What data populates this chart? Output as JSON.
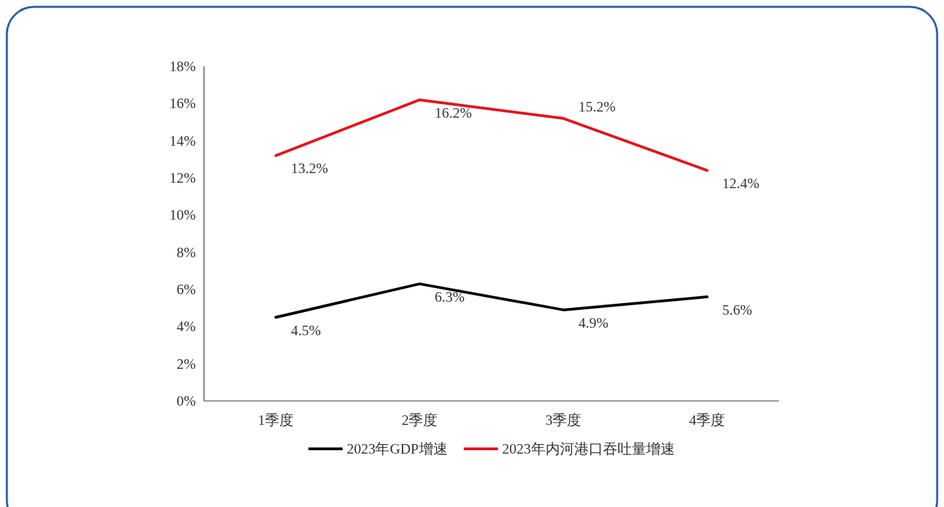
{
  "chart_data": {
    "type": "line",
    "categories": [
      "1季度",
      "2季度",
      "3季度",
      "4季度"
    ],
    "series": [
      {
        "name": "2023年GDP增速",
        "color": "#000000",
        "values": [
          4.5,
          6.3,
          4.9,
          5.6
        ],
        "value_labels": [
          "4.5%",
          "6.3%",
          "4.9%",
          "5.6%"
        ]
      },
      {
        "name": "2023年内河港口吞吐量增速",
        "color": "#e3141b",
        "values": [
          13.2,
          16.2,
          15.2,
          12.4
        ],
        "value_labels": [
          "13.2%",
          "16.2%",
          "15.2%",
          "12.4%"
        ]
      }
    ],
    "ylim": [
      0,
      18
    ],
    "yticks": [
      {
        "value": 0,
        "label": "0%"
      },
      {
        "value": 2,
        "label": "2%"
      },
      {
        "value": 4,
        "label": "4%"
      },
      {
        "value": 6,
        "label": "6%"
      },
      {
        "value": 8,
        "label": "8%"
      },
      {
        "value": 10,
        "label": "10%"
      },
      {
        "value": 12,
        "label": "12%"
      },
      {
        "value": 14,
        "label": "14%"
      },
      {
        "value": 16,
        "label": "16%"
      },
      {
        "value": 18,
        "label": "18%"
      }
    ],
    "grid": false,
    "legend": "bottom",
    "marker": "none",
    "line_style": "solid"
  }
}
